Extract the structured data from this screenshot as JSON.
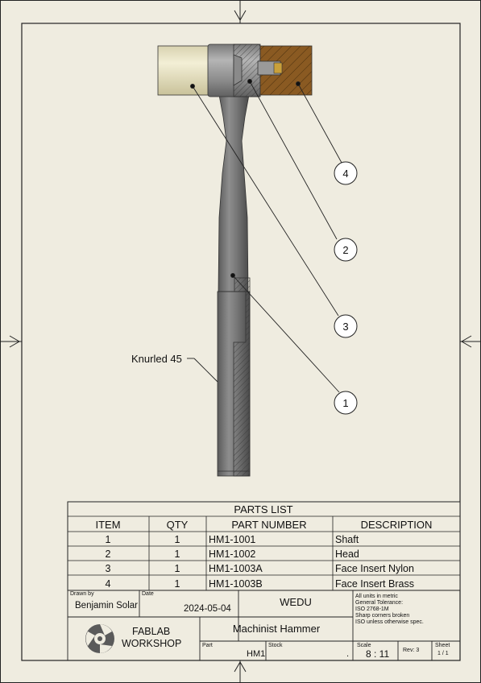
{
  "drawing": {
    "note_knurl": "Knurled 45",
    "balloons": [
      "4",
      "2",
      "3",
      "1"
    ]
  },
  "parts_list": {
    "title": "PARTS LIST",
    "headers": [
      "ITEM",
      "QTY",
      "PART NUMBER",
      "DESCRIPTION"
    ],
    "rows": [
      [
        "1",
        "1",
        "HM1-1001",
        "Shaft"
      ],
      [
        "2",
        "1",
        "HM1-1002",
        "Head"
      ],
      [
        "3",
        "1",
        "HM1-1003A",
        "Face Insert Nylon"
      ],
      [
        "4",
        "1",
        "HM1-1003B",
        "Face Insert Brass"
      ]
    ]
  },
  "title_block": {
    "drawn_by_label": "Drawn by",
    "drawn_by": "Benjamin Solar",
    "date_label": "Date",
    "date": "2024-05-04",
    "company": "WEDU",
    "notes": [
      "All units in metric",
      "General Tolerance:",
      "ISO 2768-1M",
      "Sharp corners broken",
      "ISO unless otherwise spec."
    ],
    "logo_line1": "FABLAB",
    "logo_line2": "WORKSHOP",
    "title": "Machinist Hammer",
    "part_label": "Part",
    "part": "HM1",
    "stock_label": "Stock",
    "stock": ".",
    "scale_label": "Scale",
    "scale": "8 : 11",
    "rev": "Rev: 3",
    "sheet_label": "Sheet",
    "sheet": "1 / 1"
  }
}
